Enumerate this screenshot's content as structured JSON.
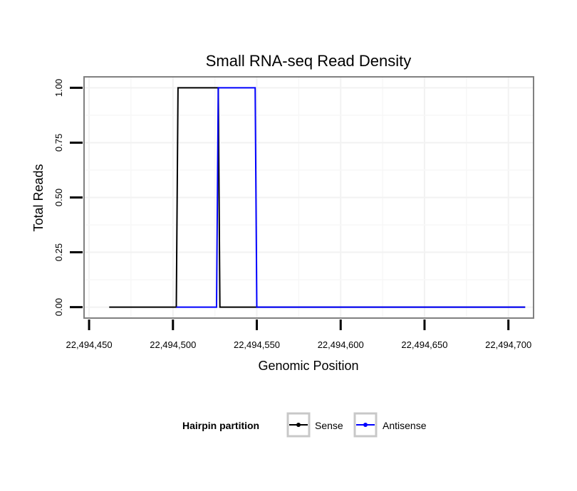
{
  "chart_data": {
    "type": "line",
    "title": "Small RNA-seq Read Density",
    "xlabel": "Genomic Position",
    "ylabel": "Total Reads",
    "xlim": [
      22494447,
      22494715
    ],
    "ylim": [
      -0.05,
      1.05
    ],
    "x_ticks": [
      22494450,
      22494500,
      22494550,
      22494600,
      22494650,
      22494700
    ],
    "x_tick_labels": [
      "22,494,450",
      "22,494,500",
      "22,494,550",
      "22,494,600",
      "22,494,650",
      "22,494,700"
    ],
    "y_ticks": [
      0,
      0.25,
      0.5,
      0.75,
      1
    ],
    "y_tick_labels": [
      "0.00",
      "0.25",
      "0.50",
      "0.75",
      "1.00"
    ],
    "grid": true,
    "legend": {
      "title": "Hairpin partition",
      "position": "bottom",
      "entries": [
        "Sense",
        "Antisense"
      ]
    },
    "series": [
      {
        "name": "Sense",
        "color": "#000000",
        "x": [
          22494462,
          22494502,
          22494503,
          22494527,
          22494528,
          22494710
        ],
        "y": [
          0,
          0,
          1,
          1,
          0,
          0
        ]
      },
      {
        "name": "Antisense",
        "color": "#0000ff",
        "x": [
          22494502,
          22494526,
          22494527,
          22494549,
          22494550,
          22494710
        ],
        "y": [
          0,
          0,
          1,
          1,
          0,
          0
        ]
      }
    ]
  }
}
